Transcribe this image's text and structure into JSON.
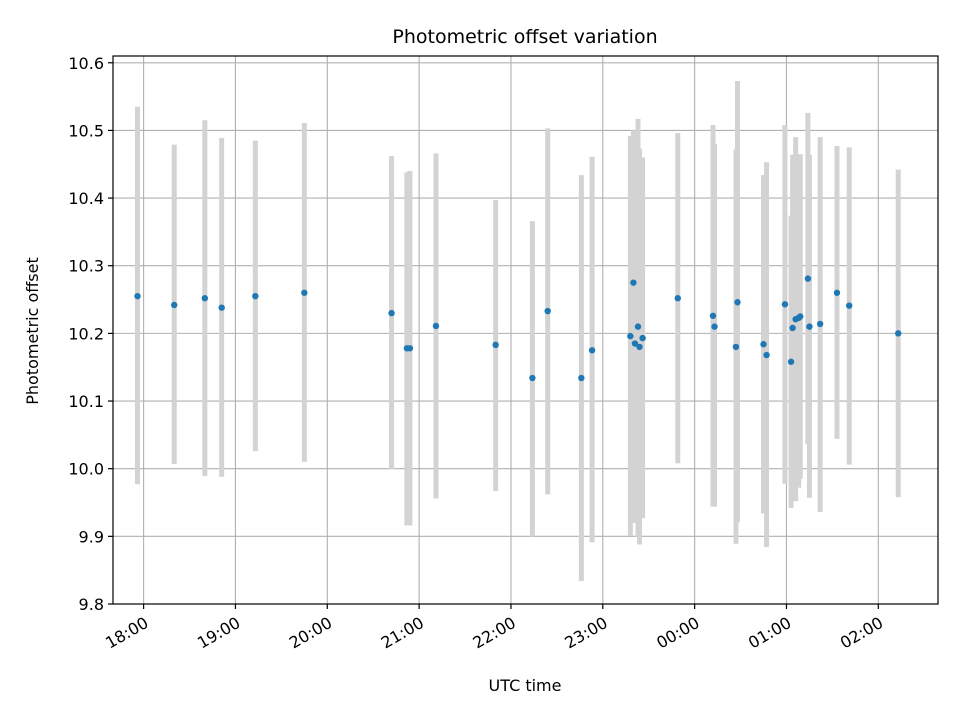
{
  "chart_data": {
    "type": "scatter",
    "title": "Photometric offset variation",
    "xlabel": "UTC time",
    "ylabel": "Photometric offset",
    "grid": true,
    "xlim": [
      "17:40",
      "02:39"
    ],
    "ylim": [
      9.8,
      10.61
    ],
    "x_tick_labels": [
      "18:00",
      "19:00",
      "20:00",
      "21:00",
      "22:00",
      "23:00",
      "00:00",
      "01:00",
      "02:00"
    ],
    "y_tick_labels": [
      "9.8",
      "9.9",
      "10.0",
      "10.1",
      "10.2",
      "10.3",
      "10.4",
      "10.5",
      "10.6"
    ],
    "colors": {
      "points": "#1f77b4",
      "errorbars": "#d3d3d3",
      "grid": "#b0b0b0"
    },
    "series": [
      {
        "points": [
          {
            "x": "17:56",
            "y": 10.255,
            "ylo": 9.977,
            "yhi": 10.535
          },
          {
            "x": "18:20",
            "y": 10.242,
            "ylo": 10.007,
            "yhi": 10.479
          },
          {
            "x": "18:40",
            "y": 10.252,
            "ylo": 9.989,
            "yhi": 10.515
          },
          {
            "x": "18:51",
            "y": 10.238,
            "ylo": 9.988,
            "yhi": 10.489
          },
          {
            "x": "19:13",
            "y": 10.255,
            "ylo": 10.026,
            "yhi": 10.485
          },
          {
            "x": "19:45",
            "y": 10.26,
            "ylo": 10.01,
            "yhi": 10.511
          },
          {
            "x": "20:42",
            "y": 10.23,
            "ylo": 9.999,
            "yhi": 10.462
          },
          {
            "x": "20:52",
            "y": 10.178,
            "ylo": 9.916,
            "yhi": 10.438
          },
          {
            "x": "20:54",
            "y": 10.178,
            "ylo": 9.916,
            "yhi": 10.44
          },
          {
            "x": "21:11",
            "y": 10.211,
            "ylo": 9.956,
            "yhi": 10.466
          },
          {
            "x": "21:50",
            "y": 10.183,
            "ylo": 9.967,
            "yhi": 10.397
          },
          {
            "x": "22:14",
            "y": 10.134,
            "ylo": 9.9,
            "yhi": 10.366
          },
          {
            "x": "22:24",
            "y": 10.233,
            "ylo": 9.962,
            "yhi": 10.503
          },
          {
            "x": "22:46",
            "y": 10.134,
            "ylo": 9.834,
            "yhi": 10.434
          },
          {
            "x": "22:53",
            "y": 10.175,
            "ylo": 9.891,
            "yhi": 10.461
          },
          {
            "x": "23:18",
            "y": 10.196,
            "ylo": 9.901,
            "yhi": 10.492
          },
          {
            "x": "23:20",
            "y": 10.275,
            "ylo": 9.92,
            "yhi": 10.5
          },
          {
            "x": "23:21",
            "y": 10.185,
            "ylo": 9.92,
            "yhi": 10.45
          },
          {
            "x": "23:23",
            "y": 10.21,
            "ylo": 9.9,
            "yhi": 10.517
          },
          {
            "x": "23:24",
            "y": 10.18,
            "ylo": 9.888,
            "yhi": 10.473
          },
          {
            "x": "23:26",
            "y": 10.193,
            "ylo": 9.927,
            "yhi": 10.46
          },
          {
            "x": "23:49",
            "y": 10.252,
            "ylo": 10.008,
            "yhi": 10.496
          },
          {
            "x": "00:12",
            "y": 10.226,
            "ylo": 9.944,
            "yhi": 10.508
          },
          {
            "x": "00:13",
            "y": 10.21,
            "ylo": 9.944,
            "yhi": 10.48
          },
          {
            "x": "00:27",
            "y": 10.18,
            "ylo": 9.889,
            "yhi": 10.472
          },
          {
            "x": "00:28",
            "y": 10.246,
            "ylo": 9.921,
            "yhi": 10.573
          },
          {
            "x": "00:45",
            "y": 10.184,
            "ylo": 9.934,
            "yhi": 10.434
          },
          {
            "x": "00:47",
            "y": 10.168,
            "ylo": 9.884,
            "yhi": 10.453
          },
          {
            "x": "00:59",
            "y": 10.243,
            "ylo": 9.978,
            "yhi": 10.508
          },
          {
            "x": "01:03",
            "y": 10.158,
            "ylo": 9.942,
            "yhi": 10.374
          },
          {
            "x": "01:04",
            "y": 10.208,
            "ylo": 9.952,
            "yhi": 10.464
          },
          {
            "x": "01:06",
            "y": 10.221,
            "ylo": 9.952,
            "yhi": 10.49
          },
          {
            "x": "01:08",
            "y": 10.223,
            "ylo": 9.972,
            "yhi": 10.462
          },
          {
            "x": "01:09",
            "y": 10.225,
            "ylo": 9.985,
            "yhi": 10.465
          },
          {
            "x": "01:14",
            "y": 10.281,
            "ylo": 10.036,
            "yhi": 10.526
          },
          {
            "x": "01:15",
            "y": 10.21,
            "ylo": 9.957,
            "yhi": 10.464
          },
          {
            "x": "01:22",
            "y": 10.214,
            "ylo": 9.936,
            "yhi": 10.49
          },
          {
            "x": "01:33",
            "y": 10.26,
            "ylo": 10.044,
            "yhi": 10.477
          },
          {
            "x": "01:41",
            "y": 10.241,
            "ylo": 10.006,
            "yhi": 10.475
          },
          {
            "x": "02:13",
            "y": 10.2,
            "ylo": 9.958,
            "yhi": 10.442
          }
        ]
      }
    ]
  }
}
